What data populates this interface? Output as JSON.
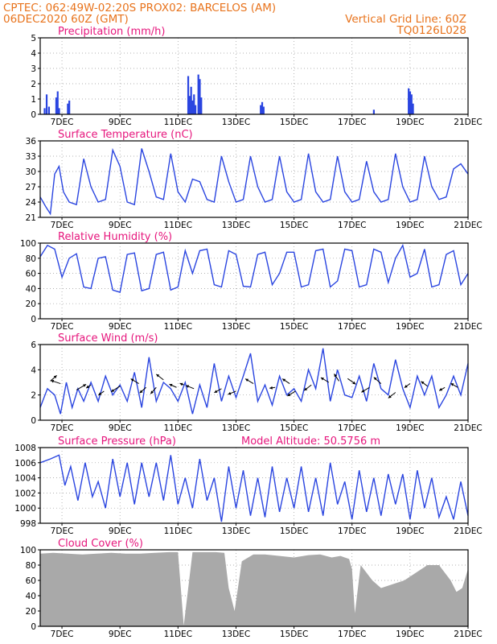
{
  "header": {
    "line1_left": "CPTEC:   062:49W-02:20S   PROX02: BARCELOS (AM)",
    "line2_left": "06DEC2020 60Z (GMT)",
    "line2_right": "Vertical Grid Line: 60Z",
    "line3_right": "TQ0126L028"
  },
  "colors": {
    "header": "#e8731c",
    "title": "#e6157c",
    "series": "#2a45e0",
    "cloud": "#a9a9a9"
  },
  "chart_data": [
    {
      "type": "bar",
      "title": "Precipitation (mm/h)",
      "x_ticks": [
        "7DEC",
        "9DEC",
        "11DEC",
        "13DEC",
        "15DEC",
        "17DEC",
        "19DEC",
        "21DEC"
      ],
      "xlim_days": [
        6.25,
        21.0
      ],
      "ylim": [
        0,
        5
      ],
      "y_ticks": [
        0,
        1,
        2,
        3,
        4,
        5
      ],
      "grid": "dotted",
      "bars": [
        {
          "t": 6.4,
          "v": 0.4
        },
        {
          "t": 6.47,
          "v": 1.3
        },
        {
          "t": 6.55,
          "v": 0.5
        },
        {
          "t": 6.8,
          "v": 1.1
        },
        {
          "t": 6.85,
          "v": 1.5
        },
        {
          "t": 6.9,
          "v": 0.4
        },
        {
          "t": 7.2,
          "v": 0.7
        },
        {
          "t": 7.25,
          "v": 0.9
        },
        {
          "t": 11.35,
          "v": 2.5
        },
        {
          "t": 11.4,
          "v": 1.2
        },
        {
          "t": 11.45,
          "v": 1.8
        },
        {
          "t": 11.5,
          "v": 0.9
        },
        {
          "t": 11.55,
          "v": 1.3
        },
        {
          "t": 11.6,
          "v": 0.6
        },
        {
          "t": 11.7,
          "v": 2.6
        },
        {
          "t": 11.75,
          "v": 2.3
        },
        {
          "t": 11.8,
          "v": 1.1
        },
        {
          "t": 13.85,
          "v": 0.6
        },
        {
          "t": 13.9,
          "v": 0.8
        },
        {
          "t": 13.95,
          "v": 0.5
        },
        {
          "t": 17.75,
          "v": 0.3
        },
        {
          "t": 18.95,
          "v": 1.7
        },
        {
          "t": 19.0,
          "v": 1.5
        },
        {
          "t": 19.05,
          "v": 1.3
        },
        {
          "t": 19.1,
          "v": 0.7
        }
      ]
    },
    {
      "type": "line",
      "title": "Surface Temperature (nC)",
      "x_ticks": [
        "7DEC",
        "9DEC",
        "11DEC",
        "13DEC",
        "15DEC",
        "17DEC",
        "19DEC",
        "21DEC"
      ],
      "ylim": [
        21,
        36
      ],
      "y_ticks": [
        21,
        24,
        27,
        30,
        33,
        36
      ],
      "grid": "dotted",
      "x": [
        6.25,
        6.45,
        6.6,
        6.75,
        6.9,
        7.05,
        7.25,
        7.5,
        7.75,
        8.0,
        8.25,
        8.5,
        8.75,
        9.0,
        9.25,
        9.5,
        9.75,
        10.0,
        10.25,
        10.5,
        10.75,
        11.0,
        11.25,
        11.5,
        11.75,
        12.0,
        12.25,
        12.5,
        12.75,
        13.0,
        13.25,
        13.5,
        13.75,
        14.0,
        14.25,
        14.5,
        14.75,
        15.0,
        15.25,
        15.5,
        15.75,
        16.0,
        16.25,
        16.5,
        16.75,
        17.0,
        17.25,
        17.5,
        17.75,
        18.0,
        18.25,
        18.5,
        18.75,
        19.0,
        19.25,
        19.5,
        19.75,
        20.0,
        20.25,
        20.5,
        20.75,
        21.0
      ],
      "y": [
        25.0,
        23.0,
        21.7,
        29.5,
        31.0,
        26.0,
        24.0,
        23.5,
        32.5,
        27.0,
        24.0,
        24.5,
        34.2,
        31.0,
        24.0,
        23.5,
        34.5,
        30.0,
        25.0,
        24.5,
        33.5,
        26.0,
        24.0,
        28.5,
        28.0,
        24.5,
        24.0,
        33.0,
        28.0,
        24.0,
        24.5,
        33.0,
        27.0,
        24.0,
        24.5,
        33.0,
        26.0,
        24.0,
        24.5,
        33.5,
        26.0,
        24.0,
        24.5,
        33.0,
        26.0,
        24.0,
        24.5,
        32.0,
        26.0,
        24.0,
        24.5,
        33.5,
        27.0,
        24.0,
        24.5,
        33.0,
        27.0,
        24.5,
        25.0,
        30.5,
        31.5,
        29.5
      ]
    },
    {
      "type": "line",
      "title": "Relative Humidity (%)",
      "x_ticks": [
        "7DEC",
        "9DEC",
        "11DEC",
        "13DEC",
        "15DEC",
        "17DEC",
        "19DEC",
        "21DEC"
      ],
      "ylim": [
        0,
        100
      ],
      "y_ticks": [
        0,
        20,
        40,
        60,
        80,
        100
      ],
      "grid": "dotted",
      "x": [
        6.25,
        6.5,
        6.75,
        7.0,
        7.25,
        7.5,
        7.75,
        8.0,
        8.25,
        8.5,
        8.75,
        9.0,
        9.25,
        9.5,
        9.75,
        10.0,
        10.25,
        10.5,
        10.75,
        11.0,
        11.25,
        11.5,
        11.75,
        12.0,
        12.25,
        12.5,
        12.75,
        13.0,
        13.25,
        13.5,
        13.75,
        14.0,
        14.25,
        14.5,
        14.75,
        15.0,
        15.25,
        15.5,
        15.75,
        16.0,
        16.25,
        16.5,
        16.75,
        17.0,
        17.25,
        17.5,
        17.75,
        18.0,
        18.25,
        18.5,
        18.75,
        19.0,
        19.25,
        19.5,
        19.75,
        20.0,
        20.25,
        20.5,
        20.75,
        21.0
      ],
      "y": [
        82,
        97,
        92,
        55,
        80,
        86,
        42,
        40,
        80,
        82,
        38,
        35,
        85,
        87,
        37,
        40,
        85,
        88,
        38,
        42,
        90,
        60,
        90,
        92,
        45,
        42,
        90,
        85,
        43,
        42,
        85,
        88,
        45,
        60,
        88,
        88,
        42,
        45,
        90,
        92,
        42,
        50,
        92,
        90,
        42,
        45,
        92,
        88,
        48,
        80,
        97,
        55,
        60,
        92,
        42,
        45,
        85,
        90,
        45,
        60
      ]
    },
    {
      "type": "line",
      "title": "Surface Wind (m/s)",
      "x_ticks": [
        "7DEC",
        "9DEC",
        "11DEC",
        "13DEC",
        "15DEC",
        "17DEC",
        "19DEC",
        "21DEC"
      ],
      "ylim": [
        0,
        6
      ],
      "y_ticks": [
        0,
        2,
        4,
        6
      ],
      "grid": "dotted",
      "x": [
        6.25,
        6.5,
        6.75,
        6.95,
        7.15,
        7.35,
        7.55,
        7.75,
        8.0,
        8.25,
        8.5,
        8.75,
        9.0,
        9.25,
        9.5,
        9.75,
        10.0,
        10.25,
        10.5,
        10.75,
        11.0,
        11.25,
        11.5,
        11.75,
        12.0,
        12.25,
        12.5,
        12.75,
        13.0,
        13.25,
        13.5,
        13.75,
        14.0,
        14.25,
        14.5,
        14.75,
        15.0,
        15.25,
        15.5,
        15.75,
        16.0,
        16.25,
        16.5,
        16.75,
        17.0,
        17.25,
        17.5,
        17.75,
        18.0,
        18.25,
        18.5,
        18.75,
        19.0,
        19.25,
        19.5,
        19.75,
        20.0,
        20.25,
        20.5,
        20.75,
        21.0
      ],
      "y": [
        1.0,
        2.5,
        2.0,
        0.5,
        3.0,
        1.0,
        2.5,
        1.5,
        3.0,
        1.5,
        3.5,
        2.0,
        2.8,
        1.5,
        3.8,
        1.0,
        5.0,
        1.5,
        3.0,
        2.5,
        1.5,
        3.0,
        0.5,
        2.8,
        1.0,
        4.5,
        1.5,
        3.5,
        1.8,
        3.5,
        5.3,
        1.5,
        2.8,
        1.2,
        3.5,
        2.0,
        2.5,
        1.5,
        4.0,
        2.5,
        5.7,
        1.5,
        4.0,
        2.0,
        1.8,
        3.5,
        1.5,
        4.5,
        2.5,
        2.0,
        4.8,
        2.5,
        1.0,
        3.5,
        2.0,
        3.5,
        1.0,
        2.0,
        3.5,
        2.0,
        4.5
      ],
      "arrows": [
        {
          "t": 6.6,
          "v": 3.1,
          "dx": 8,
          "dy": -7
        },
        {
          "t": 6.95,
          "v": 2.9,
          "dx": -12,
          "dy": -4
        },
        {
          "t": 7.5,
          "v": 2.4,
          "dx": 12,
          "dy": -7
        },
        {
          "t": 8.0,
          "v": 2.8,
          "dx": -6,
          "dy": 4
        },
        {
          "t": 8.45,
          "v": 2.3,
          "dx": -7,
          "dy": 5
        },
        {
          "t": 9.0,
          "v": 2.7,
          "dx": -11,
          "dy": 7
        },
        {
          "t": 9.65,
          "v": 2.9,
          "dx": -10,
          "dy": -6
        },
        {
          "t": 9.9,
          "v": 2.6,
          "dx": -8,
          "dy": 7
        },
        {
          "t": 10.25,
          "v": 2.6,
          "dx": -7,
          "dy": 8
        },
        {
          "t": 10.5,
          "v": 3.2,
          "dx": -9,
          "dy": -7
        },
        {
          "t": 10.95,
          "v": 2.6,
          "dx": -9,
          "dy": -4
        },
        {
          "t": 11.2,
          "v": 2.8,
          "dx": -5,
          "dy": -2
        },
        {
          "t": 11.55,
          "v": 2.5,
          "dx": -10,
          "dy": -4
        },
        {
          "t": 12.5,
          "v": 2.5,
          "dx": -9,
          "dy": 5
        },
        {
          "t": 13.0,
          "v": 2.3,
          "dx": -10,
          "dy": 4
        },
        {
          "t": 13.6,
          "v": 2.9,
          "dx": -10,
          "dy": -6
        },
        {
          "t": 14.35,
          "v": 2.6,
          "dx": -7,
          "dy": 1
        },
        {
          "t": 14.85,
          "v": 2.9,
          "dx": -9,
          "dy": -6
        },
        {
          "t": 15.05,
          "v": 2.3,
          "dx": -10,
          "dy": 6
        },
        {
          "t": 15.6,
          "v": 2.8,
          "dx": -9,
          "dy": 7
        },
        {
          "t": 16.2,
          "v": 3.0,
          "dx": -10,
          "dy": -6
        },
        {
          "t": 16.55,
          "v": 3.1,
          "dx": -6,
          "dy": -9
        },
        {
          "t": 16.85,
          "v": 3.3,
          "dx": 10,
          "dy": 7
        },
        {
          "t": 17.6,
          "v": 2.6,
          "dx": -10,
          "dy": 6
        },
        {
          "t": 18.0,
          "v": 2.9,
          "dx": -9,
          "dy": -8
        },
        {
          "t": 18.5,
          "v": 2.2,
          "dx": -9,
          "dy": 7
        },
        {
          "t": 19.0,
          "v": 2.9,
          "dx": -7,
          "dy": 5
        },
        {
          "t": 19.6,
          "v": 2.7,
          "dx": -8,
          "dy": -6
        },
        {
          "t": 20.2,
          "v": 2.6,
          "dx": -7,
          "dy": 4
        },
        {
          "t": 20.65,
          "v": 2.6,
          "dx": -9,
          "dy": -5
        }
      ]
    },
    {
      "type": "line",
      "title": "Surface Pressure (hPa)",
      "annotation": "Model Altitude: 50.5756 m",
      "x_ticks": [
        "7DEC",
        "9DEC",
        "11DEC",
        "13DEC",
        "15DEC",
        "17DEC",
        "19DEC",
        "21DEC"
      ],
      "ylim": [
        998,
        1008
      ],
      "y_ticks": [
        998,
        1000,
        1002,
        1004,
        1006,
        1008
      ],
      "grid": "dotted",
      "x": [
        6.25,
        6.6,
        6.9,
        7.1,
        7.3,
        7.55,
        7.8,
        8.05,
        8.25,
        8.5,
        8.75,
        9.0,
        9.25,
        9.5,
        9.75,
        10.0,
        10.25,
        10.5,
        10.75,
        11.0,
        11.25,
        11.5,
        11.75,
        12.0,
        12.25,
        12.5,
        12.75,
        13.0,
        13.25,
        13.5,
        13.75,
        14.0,
        14.25,
        14.5,
        14.75,
        15.0,
        15.25,
        15.5,
        15.75,
        16.0,
        16.25,
        16.5,
        16.75,
        17.0,
        17.25,
        17.5,
        17.75,
        18.0,
        18.25,
        18.5,
        18.75,
        19.0,
        19.25,
        19.5,
        19.75,
        20.0,
        20.25,
        20.5,
        20.75,
        21.0
      ],
      "y": [
        1006.0,
        1006.5,
        1007.0,
        1003.0,
        1005.5,
        1001.0,
        1006.0,
        1001.5,
        1003.5,
        1000.0,
        1006.5,
        1001.5,
        1006.0,
        1000.5,
        1006.0,
        1001.5,
        1006.0,
        1001.0,
        1007.0,
        1000.5,
        1004.0,
        1000.0,
        1006.5,
        1001.0,
        1004.0,
        998.2,
        1005.5,
        1000.0,
        1005.0,
        999.0,
        1004.0,
        998.8,
        1005.5,
        999.5,
        1004.0,
        1000.0,
        1005.5,
        999.5,
        1004.0,
        999.0,
        1006.0,
        1000.5,
        1003.5,
        998.5,
        1005.0,
        999.5,
        1004.0,
        999.0,
        1004.5,
        1000.5,
        1004.5,
        998.5,
        1005.0,
        1000.0,
        1004.0,
        998.8,
        1001.5,
        998.5,
        1003.5,
        999.0
      ]
    },
    {
      "type": "area",
      "title": "Cloud Cover (%)",
      "x_ticks": [
        "7DEC",
        "9DEC",
        "11DEC",
        "13DEC",
        "15DEC",
        "17DEC",
        "19DEC",
        "21DEC"
      ],
      "ylim": [
        0,
        100
      ],
      "y_ticks": [
        0,
        20,
        40,
        60,
        80,
        100
      ],
      "grid": "dotted",
      "x": [
        6.25,
        6.7,
        7.2,
        7.7,
        8.2,
        8.7,
        9.2,
        9.7,
        10.2,
        10.7,
        11.0,
        11.2,
        11.5,
        11.9,
        12.3,
        12.6,
        12.75,
        12.95,
        13.2,
        13.6,
        14.0,
        14.5,
        15.0,
        15.5,
        15.9,
        16.3,
        16.6,
        16.9,
        17.0,
        17.1,
        17.3,
        17.7,
        18.0,
        18.4,
        18.8,
        19.2,
        19.6,
        20.0,
        20.4,
        20.6,
        20.8,
        21.0
      ],
      "y": [
        95,
        96,
        95,
        94,
        95,
        96,
        95,
        95,
        96,
        97,
        97,
        1,
        97,
        97,
        97,
        96,
        50,
        20,
        85,
        94,
        94,
        92,
        90,
        93,
        94,
        90,
        92,
        88,
        75,
        17,
        80,
        60,
        50,
        55,
        60,
        70,
        80,
        80,
        60,
        45,
        50,
        75
      ]
    }
  ]
}
